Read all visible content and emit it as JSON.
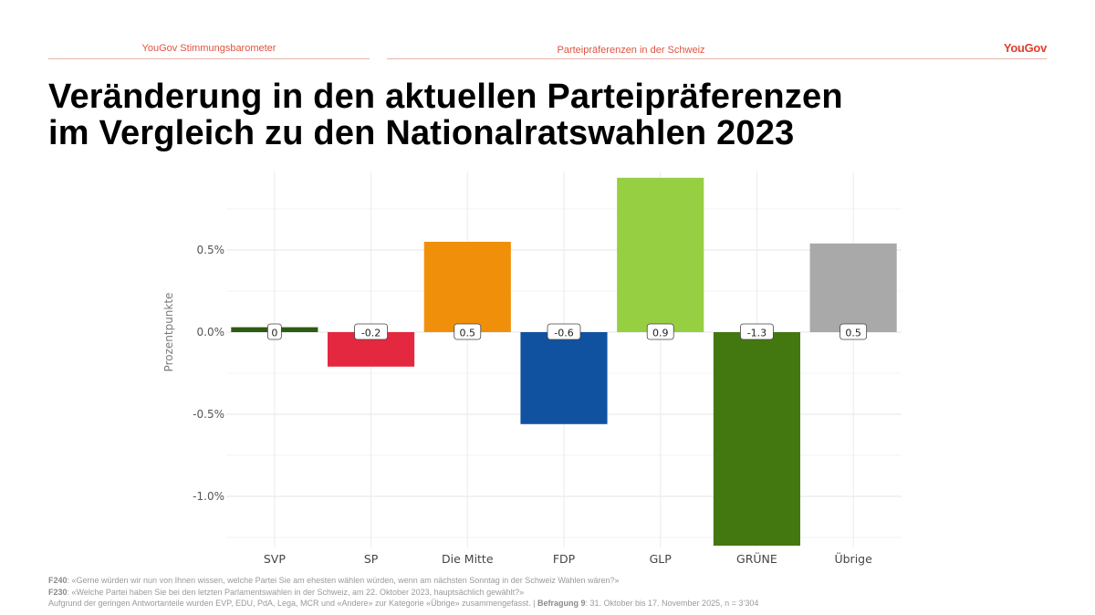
{
  "header": {
    "left_label": "YouGov Stimmungsbarometer",
    "center_label": "Parteipräferenzen in der Schweiz",
    "brand": "YouGov"
  },
  "title": {
    "line1": "Veränderung in den aktuellen Parteipräferenzen",
    "line2": "im Vergleich zu den Nationalratswahlen 2023"
  },
  "chart_data": {
    "type": "bar",
    "title": "",
    "xlabel": "",
    "ylabel": "Prozentpunkte",
    "categories": [
      "SVP",
      "SP",
      "Die Mitte",
      "FDP",
      "GLP",
      "GRÜNE",
      "Übrige"
    ],
    "values": [
      0.03,
      -0.21,
      0.55,
      -0.56,
      0.94,
      -1.3,
      0.54
    ],
    "data_labels": [
      "0",
      "-0.2",
      "0.5",
      "-0.6",
      "0.9",
      "-1.3",
      "0.5"
    ],
    "colors": [
      "#2e5b14",
      "#e32840",
      "#f0900a",
      "#1052a0",
      "#96cf42",
      "#437810",
      "#a9a9a9"
    ],
    "ylim": [
      -1.3,
      0.95
    ],
    "yticks": [
      0.5,
      0.0,
      -0.5,
      -1.0
    ],
    "ytick_labels": [
      "0.5%",
      "0.0%",
      "-0.5%",
      "-1.0%"
    ],
    "grid": true,
    "legend": "none"
  },
  "footer": {
    "f240_label": "F240",
    "f240_text": ": «Gerne würden wir nun von Ihnen wissen, welche Partei Sie am ehesten wählen würden, wenn am nächsten Sonntag in der Schweiz Wahlen wären?»",
    "f230_label": "F230",
    "f230_text": ": «Welche Partei haben Sie bei den letzten Parlamentswahlen in der Schweiz, am 22. Oktober 2023, hauptsächlich gewählt?»",
    "note_text": "Aufgrund der geringen Antwortanteile wurden EVP, EDU, PdA, Lega, MCR und «Andere» zur Kategorie «Übrige» zusammengefasst. | ",
    "survey_label": "Befragung 9",
    "survey_text": ": 31. Oktober bis 17. November 2025, n = 3’304"
  }
}
